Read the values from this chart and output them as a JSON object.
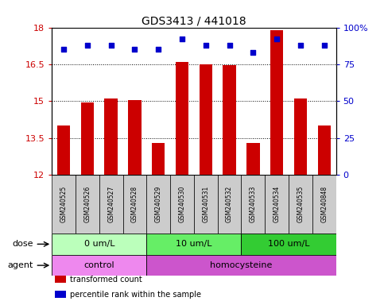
{
  "title": "GDS3413 / 441018",
  "samples": [
    "GSM240525",
    "GSM240526",
    "GSM240527",
    "GSM240528",
    "GSM240529",
    "GSM240530",
    "GSM240531",
    "GSM240532",
    "GSM240533",
    "GSM240534",
    "GSM240535",
    "GSM240848"
  ],
  "transformed_count": [
    14.0,
    14.95,
    15.1,
    15.05,
    13.3,
    16.6,
    16.5,
    16.45,
    13.3,
    17.9,
    15.1,
    14.0
  ],
  "percentile_rank": [
    85,
    88,
    88,
    85,
    85,
    92,
    88,
    88,
    83,
    92,
    88,
    88
  ],
  "bar_color": "#cc0000",
  "dot_color": "#0000cc",
  "ylim_left": [
    12,
    18
  ],
  "yticks_left": [
    12,
    13.5,
    15,
    16.5,
    18
  ],
  "ylim_right": [
    0,
    100
  ],
  "yticks_right": [
    0,
    25,
    50,
    75,
    100
  ],
  "dose_groups": [
    {
      "label": "0 um/L",
      "start": 0,
      "end": 4
    },
    {
      "label": "10 um/L",
      "start": 4,
      "end": 8
    },
    {
      "label": "100 um/L",
      "start": 8,
      "end": 12
    }
  ],
  "dose_colors": [
    "#bbffbb",
    "#66ee66",
    "#33cc33"
  ],
  "agent_groups": [
    {
      "label": "control",
      "start": 0,
      "end": 4
    },
    {
      "label": "homocysteine",
      "start": 4,
      "end": 12
    }
  ],
  "agent_colors": [
    "#ee88ee",
    "#cc55cc"
  ],
  "dose_label": "dose",
  "agent_label": "agent",
  "legend_items": [
    {
      "label": "transformed count",
      "color": "#cc0000"
    },
    {
      "label": "percentile rank within the sample",
      "color": "#0000cc"
    }
  ],
  "grid_color": "black",
  "sample_bg_color": "#cccccc",
  "bar_width": 0.55
}
